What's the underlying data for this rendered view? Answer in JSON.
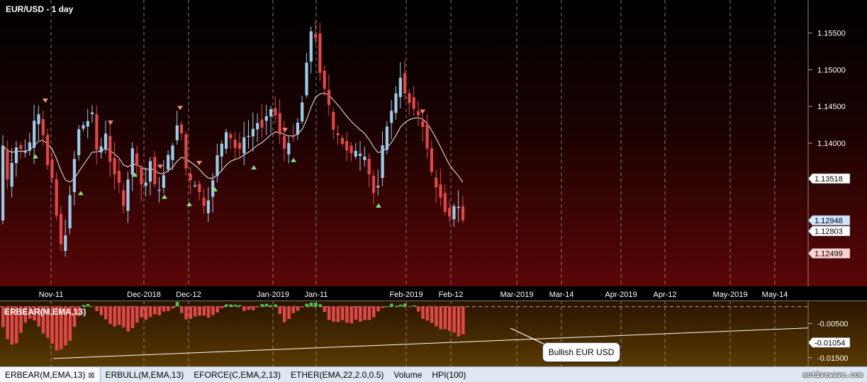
{
  "chart_data": [
    {
      "type": "candlestick",
      "title": "EUR/USD - 1 day",
      "moving_average": "EMA",
      "y_ticks": [
        "1.15500",
        "1.15000",
        "1.14500",
        "1.14000"
      ],
      "ylim": [
        1.1205,
        1.1595
      ],
      "x_ticks": [
        "Nov-11",
        "Dec-2018",
        "Dec-12",
        "Jan-2019",
        "Jan-11",
        "Feb-2019",
        "Feb-12",
        "Mar-2019",
        "Mar-14",
        "Apr-2019",
        "Apr-12",
        "May-2019",
        "May-14"
      ],
      "price_labels": [
        {
          "text": "1.13518",
          "value": 1.13518,
          "color": "#ffffff"
        },
        {
          "text": "1.12948",
          "value": 1.12948,
          "color": "#cfe6ff"
        },
        {
          "text": "1.12803",
          "value": 1.12803,
          "color": "#ffffff"
        },
        {
          "text": "1.12499",
          "value": 1.12499,
          "color": "#ffd0d0"
        }
      ],
      "colors": {
        "up": "#9ccbe8",
        "down": "#e04848",
        "ma": "#f2f2f2",
        "marker_up": "#80e080",
        "marker_down": "#f08878"
      }
    },
    {
      "type": "bar",
      "title": "ERBEAR(M,EMA,13)",
      "y_ticks": [
        "-0.00500",
        "-0.01500"
      ],
      "ylim": [
        -0.0175,
        0.0017
      ],
      "value_label": {
        "text": "-0.01054",
        "value": -0.01054
      },
      "annotation": "Bullish EUR USD",
      "colors": {
        "positive": "#4cc84c",
        "negative": "#e04848"
      }
    }
  ],
  "tabs": [
    "ERBEAR(M,EMA,13)",
    "ERBULL(M,EMA,13)",
    "EFORCE(C,EMA,2,13)",
    "ETHER(EMA,22,2.0,0.5)",
    "Volume",
    "HPI(100)"
  ],
  "tab_close_symbol": "⊠",
  "brand": "motivewave.com"
}
